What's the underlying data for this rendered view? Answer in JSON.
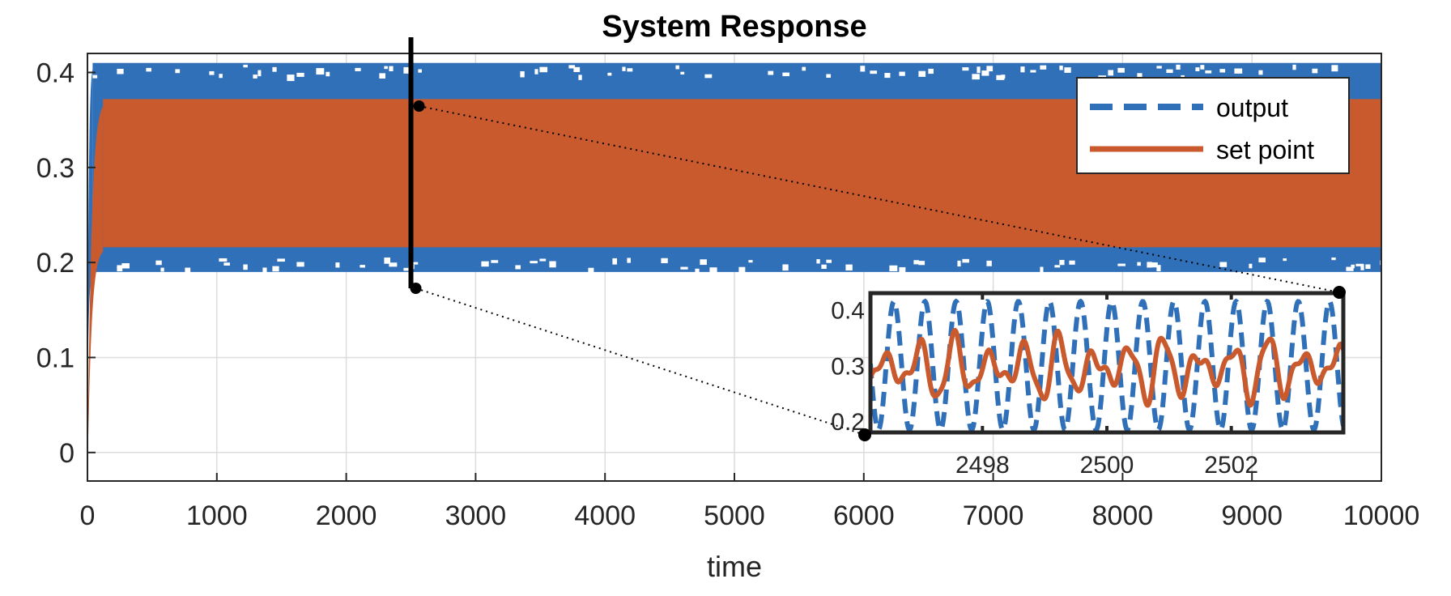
{
  "chart_data": {
    "type": "line",
    "title": "System Response",
    "xlabel": "time",
    "ylabel": "",
    "xlim": [
      0,
      10000
    ],
    "ylim": [
      -0.03,
      0.42
    ],
    "x_ticks": [
      0,
      1000,
      2000,
      3000,
      4000,
      5000,
      6000,
      7000,
      8000,
      9000,
      10000
    ],
    "x_tick_labels": [
      "0",
      "1000",
      "2000",
      "3000",
      "4000",
      "5000",
      "6000",
      "7000",
      "8000",
      "9000",
      "10000"
    ],
    "y_ticks": [
      0,
      0.1,
      0.2,
      0.3,
      0.4
    ],
    "y_tick_labels": [
      "0",
      "0.1",
      "0.2",
      "0.3",
      "0.4"
    ],
    "grid": true,
    "legend": {
      "placement": "top-right",
      "entries": [
        {
          "label": "output",
          "style": "dashed",
          "color": "#3070b8"
        },
        {
          "label": "set point",
          "style": "solid",
          "color": "#c95a2e"
        }
      ]
    },
    "series": [
      {
        "name": "output",
        "color": "#3070b8",
        "style": "dashed",
        "envelope_low": 0.19,
        "envelope_high": 0.41,
        "start_value": 0.05,
        "rise_time": 40
      },
      {
        "name": "set point",
        "color": "#c95a2e",
        "style": "solid",
        "envelope_low": 0.216,
        "envelope_high": 0.372,
        "start_value": -0.03,
        "rise_time": 120
      }
    ],
    "zoom_marker": {
      "x": 2500,
      "y_low": 0.2,
      "y_high": 0.42
    },
    "inset": {
      "xlim": [
        2496.2,
        2503.8
      ],
      "ylim": [
        0.18,
        0.43
      ],
      "x_ticks": [
        2498,
        2500,
        2502
      ],
      "x_tick_labels": [
        "2498",
        "2500",
        "2502"
      ],
      "y_ticks": [
        0.2,
        0.3,
        0.4
      ],
      "y_tick_labels": [
        "0.2",
        "0.3",
        "0.4"
      ],
      "series": [
        {
          "name": "output",
          "color": "#3070b8",
          "style": "dashed",
          "center": 0.3,
          "amplitude": 0.115,
          "period": 0.5
        },
        {
          "name": "set point",
          "color": "#c95a2e",
          "style": "solid",
          "center": 0.295,
          "amplitude": 0.06
        }
      ]
    }
  }
}
